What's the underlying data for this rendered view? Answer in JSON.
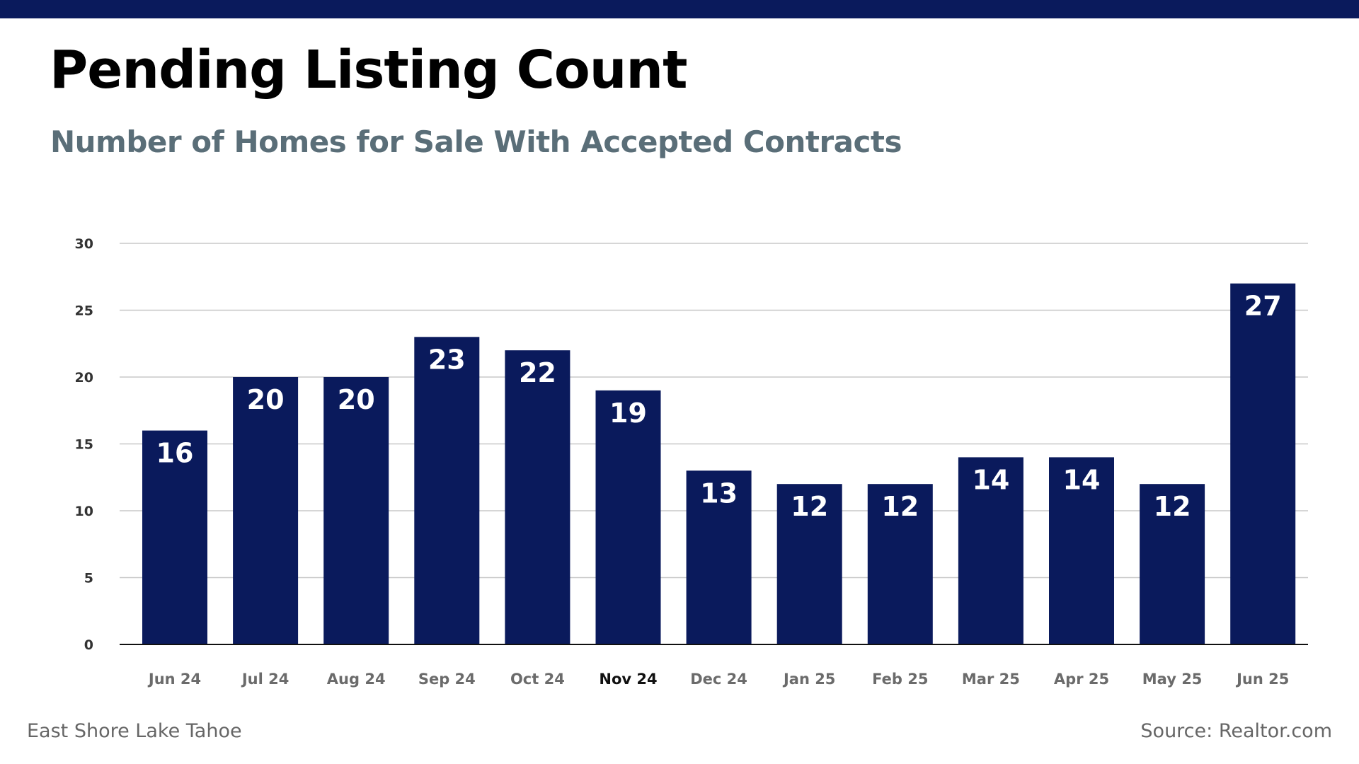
{
  "header": {
    "title": "Pending Listing Count",
    "subtitle": "Number of Homes for Sale With Accepted Contracts"
  },
  "footer": {
    "left_text": "East Shore Lake Tahoe",
    "right_text": "Source: Realtor.com"
  },
  "colors": {
    "brand_navy": "#0a1a5c",
    "subtitle_gray": "#5a6e78",
    "footer_gray": "#666666",
    "gridline": "#c8c8c8",
    "tick_label": "#333333",
    "axis_label": "#6b6b6b",
    "highlight_label": "#111111",
    "bar_label": "#ffffff"
  },
  "chart_data": {
    "type": "bar",
    "title": "Pending Listing Count",
    "subtitle": "Number of Homes for Sale With Accepted Contracts",
    "categories": [
      "Jun 24",
      "Jul 24",
      "Aug 24",
      "Sep 24",
      "Oct 24",
      "Nov 24",
      "Dec 24",
      "Jan 25",
      "Feb 25",
      "Mar 25",
      "Apr 25",
      "May 25",
      "Jun 25"
    ],
    "values": [
      16,
      20,
      20,
      23,
      22,
      19,
      13,
      12,
      12,
      14,
      14,
      12,
      27
    ],
    "highlighted_category": "Nov 24",
    "ylim": [
      0,
      30
    ],
    "yticks": [
      0,
      5,
      10,
      15,
      20,
      25,
      30
    ],
    "xlabel": "",
    "ylabel": "",
    "grid": true,
    "data_labels": "inside-top",
    "legend": "none"
  }
}
